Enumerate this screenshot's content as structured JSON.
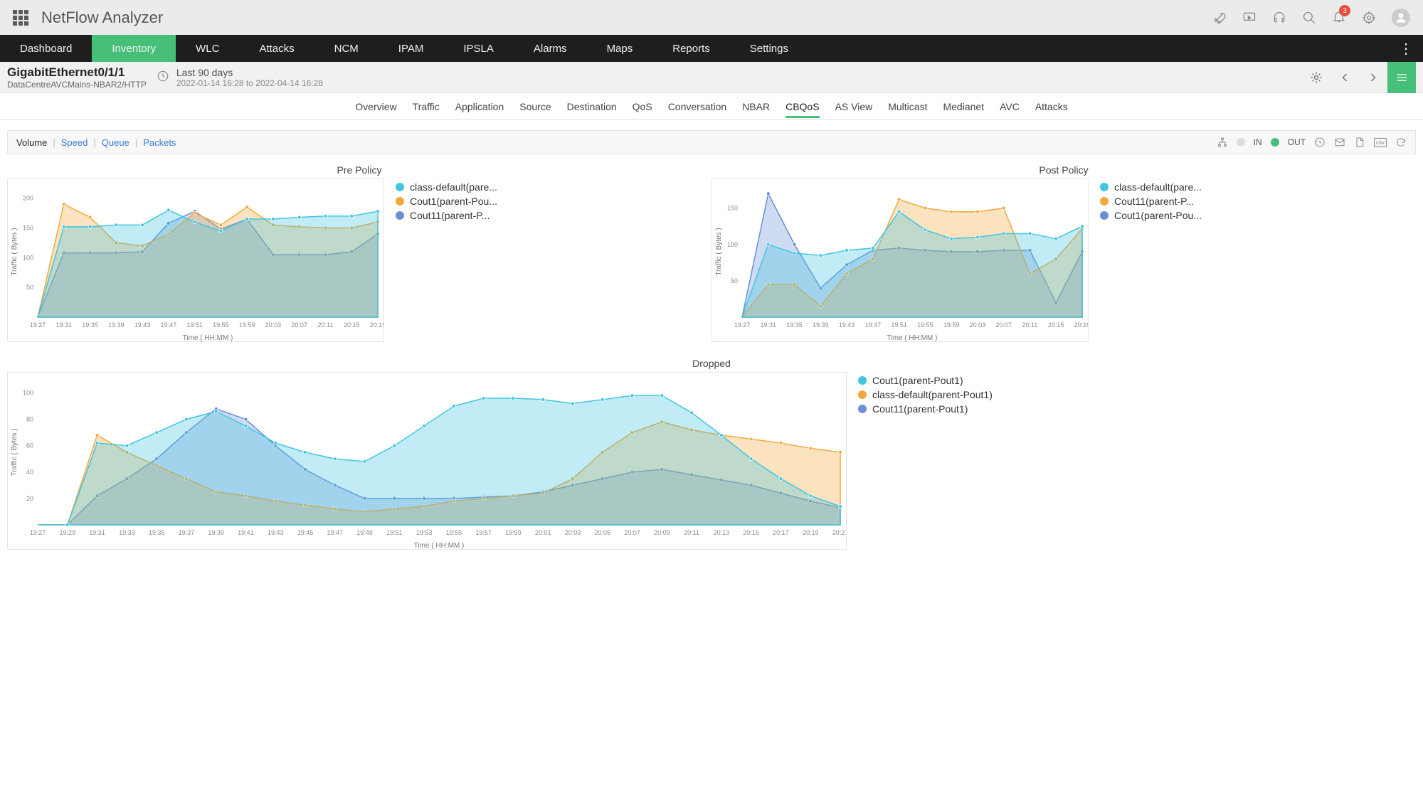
{
  "brand": "NetFlow Analyzer",
  "notification_count": "3",
  "main_nav": [
    "Dashboard",
    "Inventory",
    "WLC",
    "Attacks",
    "NCM",
    "IPAM",
    "IPSLA",
    "Alarms",
    "Maps",
    "Reports",
    "Settings"
  ],
  "main_nav_active": "Inventory",
  "context": {
    "title": "GigabitEthernet0/1/1",
    "subtitle": "DataCentreAVCMains-NBAR2/HTTP",
    "range_label": "Last 90 days",
    "range_value": "2022-01-14 16:28 to 2022-04-14 16:28"
  },
  "sub_tabs": [
    "Overview",
    "Traffic",
    "Application",
    "Source",
    "Destination",
    "QoS",
    "Conversation",
    "NBAR",
    "CBQoS",
    "AS View",
    "Multicast",
    "Medianet",
    "AVC",
    "Attacks"
  ],
  "sub_tab_active": "CBQoS",
  "filter": {
    "active": "Volume",
    "links": [
      "Speed",
      "Queue",
      "Packets"
    ],
    "in_label": "IN",
    "out_label": "OUT"
  },
  "colors": {
    "cyan": "#42c5e0",
    "orange": "#f2a93b",
    "blue": "#6a8fd6",
    "green": "#46c079"
  },
  "chart1": {
    "title": "Pre Policy",
    "y_label": "Traffic ( Bytes )",
    "x_label": "Time ( HH:MM )",
    "ylim": [
      0,
      220
    ],
    "yticks": [
      50,
      100,
      150,
      200
    ],
    "x_ticks": [
      "19:27",
      "19:31",
      "19:35",
      "19:39",
      "19:43",
      "19:47",
      "19:51",
      "19:55",
      "19:59",
      "20:03",
      "20:07",
      "20:11",
      "20:15",
      "20:19"
    ],
    "legend": [
      "class-default(pare...",
      "Cout1(parent-Pou...",
      "Cout11(parent-P..."
    ],
    "series": {
      "cyan": [
        0,
        152,
        152,
        155,
        155,
        180,
        160,
        145,
        165,
        165,
        168,
        170,
        170,
        178
      ],
      "orange": [
        0,
        190,
        168,
        125,
        120,
        140,
        175,
        155,
        185,
        155,
        152,
        150,
        150,
        160
      ],
      "blue": [
        0,
        108,
        108,
        108,
        110,
        158,
        178,
        148,
        165,
        105,
        105,
        105,
        110,
        140
      ]
    }
  },
  "chart2": {
    "title": "Post Policy",
    "y_label": "Traffic ( Bytes )",
    "x_label": "Time ( HH:MM )",
    "ylim": [
      0,
      180
    ],
    "yticks": [
      50,
      100,
      150
    ],
    "x_ticks": [
      "19:27",
      "19:31",
      "19:35",
      "19:39",
      "19:43",
      "19:47",
      "19:51",
      "19:55",
      "19:59",
      "20:03",
      "20:07",
      "20:11",
      "20:15",
      "20:19"
    ],
    "legend": [
      "class-default(pare...",
      "Cout11(parent-P...",
      "Cout1(parent-Pou..."
    ],
    "series": {
      "cyan": [
        0,
        100,
        88,
        85,
        92,
        95,
        145,
        120,
        108,
        110,
        115,
        115,
        108,
        125
      ],
      "orange": [
        0,
        45,
        45,
        15,
        60,
        80,
        162,
        150,
        145,
        145,
        150,
        60,
        80,
        122
      ],
      "blue": [
        0,
        170,
        100,
        40,
        72,
        92,
        95,
        92,
        90,
        90,
        92,
        92,
        20,
        90
      ]
    }
  },
  "chart3": {
    "title": "Dropped",
    "y_label": "Traffic ( Bytes )",
    "x_label": "Time ( HH:MM )",
    "ylim": [
      0,
      110
    ],
    "yticks": [
      20,
      40,
      60,
      80,
      100
    ],
    "x_ticks": [
      "19:27",
      "19:29",
      "19:31",
      "19:33",
      "19:35",
      "19:37",
      "19:39",
      "19:41",
      "19:43",
      "19:45",
      "19:47",
      "19:49",
      "19:51",
      "19:53",
      "19:55",
      "19:57",
      "19:59",
      "20:01",
      "20:03",
      "20:05",
      "20:07",
      "20:09",
      "20:11",
      "20:13",
      "20:15",
      "20:17",
      "20:19",
      "20:21"
    ],
    "legend": [
      "Cout1(parent-Pout1)",
      "class-default(parent-Pout1)",
      "Cout11(parent-Pout1)"
    ],
    "series": {
      "cyan": [
        0,
        0,
        62,
        60,
        70,
        80,
        86,
        75,
        62,
        55,
        50,
        48,
        60,
        75,
        90,
        96,
        96,
        95,
        92,
        95,
        98,
        98,
        85,
        68,
        50,
        35,
        22,
        14
      ],
      "orange": [
        0,
        0,
        68,
        55,
        45,
        35,
        25,
        22,
        18,
        15,
        12,
        10,
        12,
        14,
        18,
        20,
        22,
        24,
        35,
        55,
        70,
        78,
        72,
        68,
        65,
        62,
        58,
        55
      ],
      "blue": [
        0,
        0,
        22,
        35,
        50,
        70,
        88,
        80,
        60,
        42,
        30,
        20,
        20,
        20,
        20,
        21,
        22,
        25,
        30,
        35,
        40,
        42,
        38,
        34,
        30,
        24,
        18,
        13
      ]
    }
  }
}
